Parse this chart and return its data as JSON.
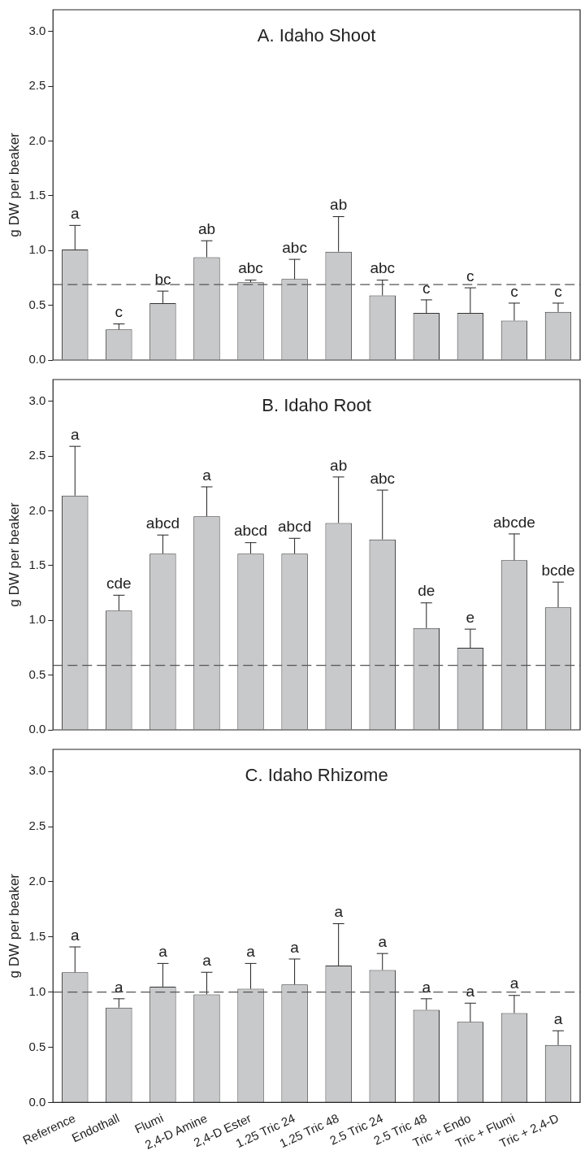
{
  "chart_data": [
    {
      "type": "bar",
      "title": "A. Idaho Shoot",
      "ylabel": "g DW per beaker",
      "color": "#c8c9cb",
      "categories": [
        "Reference",
        "Endothall",
        "Flumi",
        "2,4-D Amine",
        "2,4-D Ester",
        "1.25 Tric 24",
        "1.25 Tric 48",
        "2.5 Tric 24",
        "2.5 Tric 48",
        "Tric + Endo",
        "Tric + Flumi",
        "Tric + 2,4-D"
      ],
      "values": [
        1.01,
        0.28,
        0.52,
        0.94,
        0.71,
        0.74,
        0.99,
        0.59,
        0.43,
        0.43,
        0.36,
        0.44
      ],
      "errors": [
        [
          1.01,
          1.23
        ],
        [
          0.28,
          0.33
        ],
        [
          0.52,
          0.63
        ],
        [
          0.94,
          1.09
        ],
        [
          0.71,
          0.73
        ],
        [
          0.74,
          0.92
        ],
        [
          0.99,
          1.31
        ],
        [
          0.59,
          0.73
        ],
        [
          0.43,
          0.55
        ],
        [
          0.43,
          0.66
        ],
        [
          0.36,
          0.52
        ],
        [
          0.44,
          0.52
        ]
      ],
      "ylim": [
        0,
        3.2
      ],
      "yticks": [
        {
          "value": 0,
          "label": "0.0"
        },
        {
          "value": 0.5,
          "label": "0.5"
        },
        {
          "value": 1,
          "label": "1.0"
        },
        {
          "value": 1.5,
          "label": "1.5"
        },
        {
          "value": 2,
          "label": "2.0"
        },
        {
          "value": 2.5,
          "label": "2.5"
        },
        {
          "value": 3,
          "label": "3.0"
        }
      ],
      "tick_labels": "y",
      "ref_lines": [
        {
          "axis": "y",
          "value": 0.69,
          "line_style": "dashed",
          "color": "#555555"
        }
      ],
      "annotations": [
        {
          "text": "a",
          "x": "Reference",
          "y": 1.23
        },
        {
          "text": "c",
          "x": "Endothall",
          "y": 0.33
        },
        {
          "text": "bc",
          "x": "Flumi",
          "y": 0.63
        },
        {
          "text": "ab",
          "x": "2,4-D Amine",
          "y": 1.09
        },
        {
          "text": "abc",
          "x": "2,4-D Ester",
          "y": 0.73
        },
        {
          "text": "abc",
          "x": "1.25 Tric 24",
          "y": 0.92
        },
        {
          "text": "ab",
          "x": "1.25 Tric 48",
          "y": 1.31
        },
        {
          "text": "abc",
          "x": "2.5 Tric 24",
          "y": 0.73
        },
        {
          "text": "c",
          "x": "2.5 Tric 48",
          "y": 0.55
        },
        {
          "text": "c",
          "x": "Tric + Endo",
          "y": 0.66
        },
        {
          "text": "c",
          "x": "Tric + Flumi",
          "y": 0.52
        },
        {
          "text": "c",
          "x": "Tric + 2,4-D",
          "y": 0.52
        }
      ]
    },
    {
      "type": "bar",
      "title": "B. Idaho Root",
      "ylabel": "g DW per beaker",
      "color": "#c8c9cb",
      "categories": [
        "Reference",
        "Endothall",
        "Flumi",
        "2,4-D Amine",
        "2,4-D Ester",
        "1.25 Tric 24",
        "1.25 Tric 48",
        "2.5 Tric 24",
        "2.5 Tric 48",
        "Tric + Endo",
        "Tric + Flumi",
        "Tric + 2,4-D"
      ],
      "values": [
        2.14,
        1.09,
        1.61,
        1.95,
        1.61,
        1.61,
        1.89,
        1.74,
        0.93,
        0.75,
        1.55,
        1.12
      ],
      "errors": [
        [
          2.14,
          2.59
        ],
        [
          1.09,
          1.23
        ],
        [
          1.61,
          1.78
        ],
        [
          1.95,
          2.22
        ],
        [
          1.61,
          1.71
        ],
        [
          1.61,
          1.75
        ],
        [
          1.89,
          2.31
        ],
        [
          1.74,
          2.19
        ],
        [
          0.93,
          1.16
        ],
        [
          0.75,
          0.92
        ],
        [
          1.55,
          1.79
        ],
        [
          1.12,
          1.35
        ]
      ],
      "ylim": [
        0,
        3.2
      ],
      "yticks": [
        {
          "value": 0,
          "label": "0.0"
        },
        {
          "value": 0.5,
          "label": "0.5"
        },
        {
          "value": 1,
          "label": "1.0"
        },
        {
          "value": 1.5,
          "label": "1.5"
        },
        {
          "value": 2,
          "label": "2.0"
        },
        {
          "value": 2.5,
          "label": "2.5"
        },
        {
          "value": 3,
          "label": "3.0"
        }
      ],
      "tick_labels": "y",
      "ref_lines": [
        {
          "axis": "y",
          "value": 0.59,
          "line_style": "dashed",
          "color": "#555555"
        }
      ],
      "annotations": [
        {
          "text": "a",
          "x": "Reference",
          "y": 2.59
        },
        {
          "text": "cde",
          "x": "Endothall",
          "y": 1.23
        },
        {
          "text": "abcd",
          "x": "Flumi",
          "y": 1.78
        },
        {
          "text": "a",
          "x": "2,4-D Amine",
          "y": 2.22
        },
        {
          "text": "abcd",
          "x": "2,4-D Ester",
          "y": 1.71
        },
        {
          "text": "abcd",
          "x": "1.25 Tric 24",
          "y": 1.75
        },
        {
          "text": "ab",
          "x": "1.25 Tric 48",
          "y": 2.31
        },
        {
          "text": "abc",
          "x": "2.5 Tric 24",
          "y": 2.19
        },
        {
          "text": "de",
          "x": "2.5 Tric 48",
          "y": 1.16
        },
        {
          "text": "e",
          "x": "Tric + Endo",
          "y": 0.92
        },
        {
          "text": "abcde",
          "x": "Tric + Flumi",
          "y": 1.79
        },
        {
          "text": "bcde",
          "x": "Tric + 2,4-D",
          "y": 1.35
        }
      ]
    },
    {
      "type": "bar",
      "title": "C. Idaho Rhizome",
      "ylabel": "g DW per beaker",
      "color": "#c8c9cb",
      "categories": [
        "Reference",
        "Endothall",
        "Flumi",
        "2,4-D Amine",
        "2,4-D Ester",
        "1.25 Tric 24",
        "1.25 Tric 48",
        "2.5 Tric 24",
        "2.5 Tric 48",
        "Tric + Endo",
        "Tric + Flumi",
        "Tric + 2,4-D"
      ],
      "values": [
        1.18,
        0.86,
        1.05,
        0.98,
        1.03,
        1.07,
        1.24,
        1.2,
        0.84,
        0.73,
        0.81,
        0.52
      ],
      "errors": [
        [
          1.18,
          1.41
        ],
        [
          0.86,
          0.94
        ],
        [
          1.05,
          1.26
        ],
        [
          0.98,
          1.18
        ],
        [
          1.03,
          1.26
        ],
        [
          1.07,
          1.3
        ],
        [
          1.24,
          1.62
        ],
        [
          1.2,
          1.35
        ],
        [
          0.84,
          0.94
        ],
        [
          0.73,
          0.9
        ],
        [
          0.81,
          0.97
        ],
        [
          0.52,
          0.65
        ]
      ],
      "ylim": [
        0,
        3.2
      ],
      "yticks": [
        {
          "value": 0,
          "label": "0.0"
        },
        {
          "value": 0.5,
          "label": "0.5"
        },
        {
          "value": 1,
          "label": "1.0"
        },
        {
          "value": 1.5,
          "label": "1.5"
        },
        {
          "value": 2,
          "label": "2.0"
        },
        {
          "value": 2.5,
          "label": "2.5"
        },
        {
          "value": 3,
          "label": "3.0"
        }
      ],
      "ref_lines": [
        {
          "axis": "y",
          "value": 1.0,
          "line_style": "dashed",
          "color": "#555555"
        }
      ],
      "annotations": [
        {
          "text": "a",
          "x": "Reference",
          "y": 1.41
        },
        {
          "text": "a",
          "x": "Endothall",
          "y": 0.94
        },
        {
          "text": "a",
          "x": "Flumi",
          "y": 1.26
        },
        {
          "text": "a",
          "x": "2,4-D Amine",
          "y": 1.18
        },
        {
          "text": "a",
          "x": "2,4-D Ester",
          "y": 1.26
        },
        {
          "text": "a",
          "x": "1.25 Tric 24",
          "y": 1.3
        },
        {
          "text": "a",
          "x": "1.25 Tric 48",
          "y": 1.62
        },
        {
          "text": "a",
          "x": "2.5 Tric 24",
          "y": 1.35
        },
        {
          "text": "a",
          "x": "2.5 Tric 48",
          "y": 0.94
        },
        {
          "text": "a",
          "x": "Tric + Endo",
          "y": 0.9
        },
        {
          "text": "a",
          "x": "Tric + Flumi",
          "y": 0.97
        },
        {
          "text": "a",
          "x": "Tric + 2,4-D",
          "y": 0.65
        }
      ]
    }
  ]
}
